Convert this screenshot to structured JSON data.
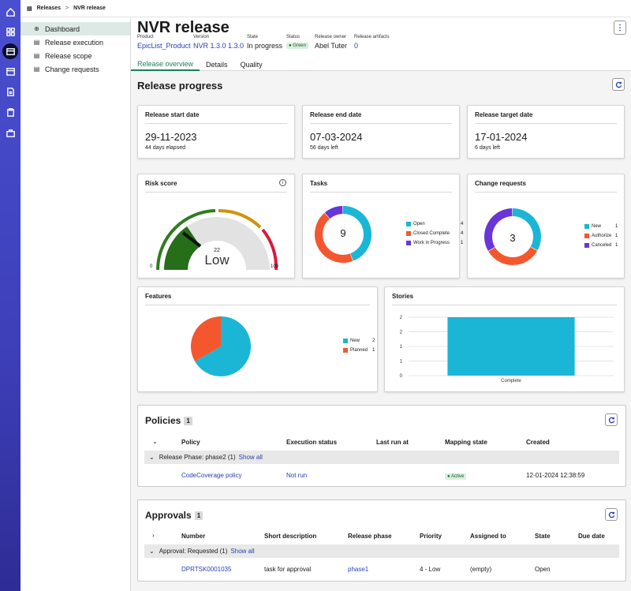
{
  "breadcrumb": {
    "root": "Releases",
    "sep": ">",
    "current": "NVR release"
  },
  "sidenav": [
    {
      "label": "Dashboard",
      "icon": "dashboard-icon"
    },
    {
      "label": "Release execution",
      "icon": "list-icon"
    },
    {
      "label": "Release scope",
      "icon": "list-icon"
    },
    {
      "label": "Change requests",
      "icon": "list-icon"
    }
  ],
  "header": {
    "title": "NVR release",
    "kebab": "⋮",
    "meta": [
      {
        "label": "Product",
        "value": "EpicList_Product",
        "link": true
      },
      {
        "label": "Version",
        "value": "NVR 1.3.0 1.3.0",
        "link": true
      },
      {
        "label": "State",
        "value": "In progress",
        "link": false
      },
      {
        "label": "Status",
        "value": "Green",
        "badge": true
      },
      {
        "label": "Release owner",
        "value": "Abel Tuter",
        "link": false
      },
      {
        "label": "Release artifacts",
        "value": "0",
        "link": true
      }
    ],
    "tabs": [
      "Release overview",
      "Details",
      "Quality"
    ]
  },
  "progress": {
    "title": "Release progress",
    "start": {
      "label": "Release start date",
      "value": "29-11-2023",
      "sub": "44 days elapsed"
    },
    "end": {
      "label": "Release end date",
      "value": "07-03-2024",
      "sub": "56 days left"
    },
    "target": {
      "label": "Release target date",
      "value": "17-01-2024",
      "sub": "6 days left"
    }
  },
  "risk": {
    "title": "Risk score",
    "value": "22",
    "level": "Low",
    "min": "0",
    "max": "100",
    "info": "i"
  },
  "tasks": {
    "title": "Tasks",
    "total": "9",
    "items": [
      {
        "label": "Open",
        "count": "4",
        "color": "#1bb6d6"
      },
      {
        "label": "Closed Complete",
        "count": "4",
        "color": "#f4572e"
      },
      {
        "label": "Work in Progress",
        "count": "1",
        "color": "#6a35d6"
      }
    ]
  },
  "changes": {
    "title": "Change requests",
    "total": "3",
    "items": [
      {
        "label": "New",
        "count": "1",
        "color": "#1bb6d6"
      },
      {
        "label": "Authorize",
        "count": "1",
        "color": "#f4572e"
      },
      {
        "label": "Canceled",
        "count": "1",
        "color": "#6a35d6"
      }
    ]
  },
  "features": {
    "title": "Features",
    "items": [
      {
        "label": "New",
        "count": "2",
        "color": "#1bb6d6"
      },
      {
        "label": "Planned",
        "count": "1",
        "color": "#f4572e"
      }
    ]
  },
  "stories": {
    "title": "Stories"
  },
  "chart_data": [
    {
      "type": "pie",
      "title": "Tasks",
      "categories": [
        "Open",
        "Closed Complete",
        "Work in Progress"
      ],
      "values": [
        4,
        4,
        1
      ]
    },
    {
      "type": "pie",
      "title": "Change requests",
      "categories": [
        "New",
        "Authorize",
        "Canceled"
      ],
      "values": [
        1,
        1,
        1
      ]
    },
    {
      "type": "pie",
      "title": "Features",
      "categories": [
        "New",
        "Planned"
      ],
      "values": [
        2,
        1
      ]
    },
    {
      "type": "bar",
      "title": "Stories",
      "categories": [
        "Complete"
      ],
      "values": [
        2
      ],
      "ylim": [
        0,
        2
      ],
      "yticks": [
        "0",
        "1",
        "1",
        "2",
        "2"
      ],
      "color": "#1bb6d6"
    }
  ],
  "policies": {
    "title": "Policies",
    "count": "1",
    "headers": [
      "Policy",
      "Execution status",
      "Last run at",
      "Mapping state",
      "Created"
    ],
    "group": "Release Phase: phase2 (1)",
    "show_all": "Show all",
    "row": {
      "policy": "CodeCoverage policy",
      "exec": "Not run",
      "last": "",
      "mapping": "Active",
      "created": "12-01-2024 12:38:59"
    }
  },
  "approvals": {
    "title": "Approvals",
    "count": "1",
    "headers": [
      "Number",
      "Short description",
      "Release phase",
      "Priority",
      "Assigned to",
      "State",
      "Due date"
    ],
    "group": "Approval: Requested (1)",
    "show_all": "Show all",
    "row": {
      "number": "DPRTSK0001035",
      "desc": "task for approval",
      "phase": "phase1",
      "priority": "4 - Low",
      "assigned": "(empty)",
      "state": "Open",
      "due": ""
    }
  }
}
